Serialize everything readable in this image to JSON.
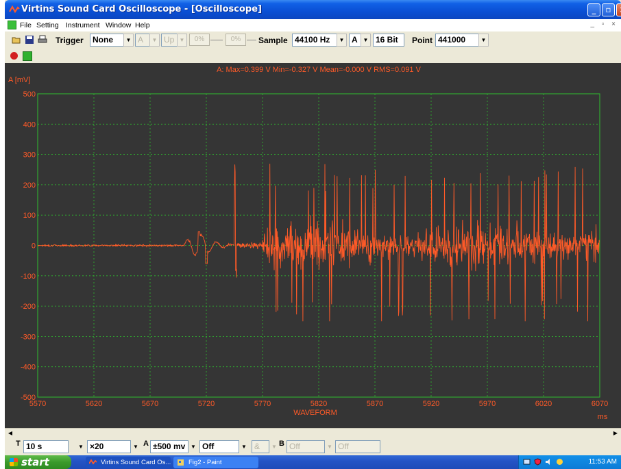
{
  "window": {
    "title": "Virtins Sound Card Oscilloscope - [Oscilloscope]"
  },
  "menu": {
    "items": [
      "File",
      "Setting",
      "Instrument",
      "Window",
      "Help"
    ],
    "mdi_controls": "_ ▫ ×"
  },
  "toolbar": {
    "trigger_label": "Trigger",
    "trigger_mode": "None",
    "trigger_channel": "A",
    "trigger_edge": "Up",
    "trigger_level_1": "0%",
    "trigger_level_2": "0%",
    "sample_label": "Sample",
    "sample_rate": "44100 Hz",
    "channel": "A",
    "bit_depth": "16 Bit",
    "point_label": "Point",
    "points": "441000"
  },
  "scope": {
    "stats": "A: Max=0.399 V  Min=-0.327 V   Mean=-0.000 V   RMS=0.091 V",
    "y_unit_label": "A [mV]",
    "y_ticks": [
      "500",
      "400",
      "300",
      "200",
      "100",
      "0",
      "-100",
      "-200",
      "-300",
      "-400",
      "-500"
    ],
    "x_ticks": [
      "5570",
      "5620",
      "5670",
      "5720",
      "5770",
      "5820",
      "5870",
      "5920",
      "5970",
      "6020",
      "6070"
    ],
    "x_title": "WAVEFORM",
    "x_unit": "ms"
  },
  "chart_data": {
    "type": "line",
    "title": "",
    "xlabel": "WAVEFORM",
    "ylabel": "A [mV]",
    "x_unit": "ms",
    "xlim": [
      5570,
      6070
    ],
    "ylim": [
      -500,
      500
    ],
    "grid": true,
    "series": [
      {
        "color": "#ff5a28",
        "segments": [
          {
            "x_range": [
              5570,
              5700
            ],
            "approx_amplitude_mV": 5,
            "description": "flat near 0"
          },
          {
            "x_range": [
              5700,
              5745
            ],
            "peak_mV": 45,
            "min_mV": -60
          },
          {
            "x_range": [
              5745,
              5770
            ],
            "peak_mV": 270,
            "min_mV": -110
          },
          {
            "x_range": [
              5770,
              6070
            ],
            "peak_mV": 270,
            "min_mV": -250,
            "typical_amplitude_mV": 130
          }
        ]
      }
    ]
  },
  "bottom": {
    "t_label": "T",
    "timebase": "10 s",
    "zoom": "×20",
    "a_label": "A",
    "a_range": "±500 mv",
    "a_coupling": "Off",
    "amp_sym": "&",
    "b_label": "B",
    "b_range": "Off",
    "b_coupling": "Off"
  },
  "taskbar": {
    "start": "start",
    "tasks": [
      "Virtins Sound Card Os...",
      "Fig2 - Paint"
    ],
    "clock": "11:53 AM"
  },
  "colors": {
    "trace": "#ff5a28",
    "grid": "#2fbf2f",
    "scope_bg": "#353535",
    "axis_text": "#ff5a28"
  }
}
